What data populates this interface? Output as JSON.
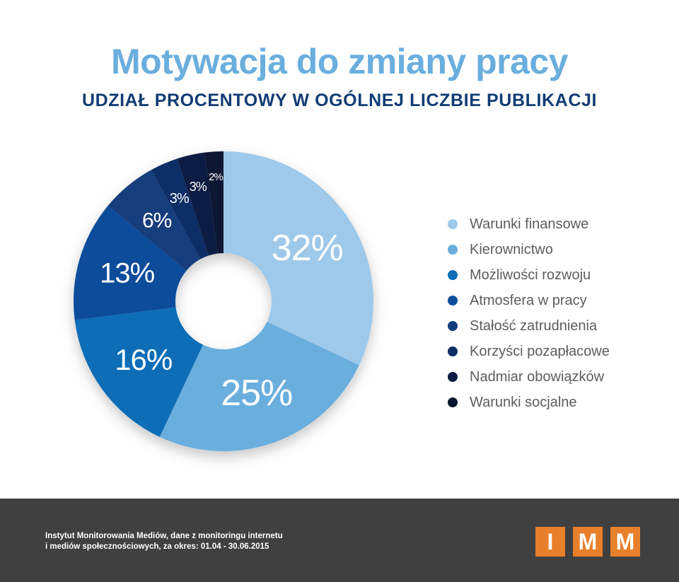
{
  "title": "Motywacja do zmiany pracy",
  "subtitle": "UDZIAŁ PROCENTOWY W OGÓLNEJ LICZBIE PUBLIKACJI",
  "chart_data": {
    "type": "pie",
    "variant": "donut",
    "start": "top, clockwise",
    "categories": [
      "Warunki finansowe",
      "Kierownictwo",
      "Możliwości rozwoju",
      "Atmosfera w pracy",
      "Stałość zatrudnienia",
      "Korzyści pozapłacowe",
      "Nadmiar obowiązków",
      "Warunki socjalne"
    ],
    "values": [
      32,
      25,
      16,
      13,
      6,
      3,
      3,
      2
    ],
    "labels": [
      "32%",
      "25%",
      "16%",
      "13%",
      "6%",
      "3%",
      "3%",
      "2%"
    ],
    "colors": [
      "#9ec9ea",
      "#6aaede",
      "#0b6db7",
      "#0d4c9b",
      "#123c7b",
      "#0f2e66",
      "#0b1d42",
      "#071530"
    ],
    "legend_position": "right"
  },
  "legend": [
    {
      "label": "Warunki finansowe",
      "color": "#9ec9ea"
    },
    {
      "label": "Kierownictwo",
      "color": "#6aaede"
    },
    {
      "label": "Możliwości rozwoju",
      "color": "#0b6db7"
    },
    {
      "label": "Atmosfera w pracy",
      "color": "#0d4c9b"
    },
    {
      "label": "Stałość zatrudnienia",
      "color": "#123c7b"
    },
    {
      "label": "Korzyści pozapłacowe",
      "color": "#0f2e66"
    },
    {
      "label": "Nadmiar obowiązków",
      "color": "#0b1d42"
    },
    {
      "label": "Warunki socjalne",
      "color": "#071530"
    }
  ],
  "footer": {
    "source_line1": "Instytut Monitorowania Mediów, dane z monitoringu internetu",
    "source_line2": "i mediów społecznościowych, za okres: 01.04 - 30.06.2015",
    "logo_letters": [
      "I",
      "M",
      "M"
    ],
    "logo_color": "#e8802b",
    "background": "#404041"
  }
}
